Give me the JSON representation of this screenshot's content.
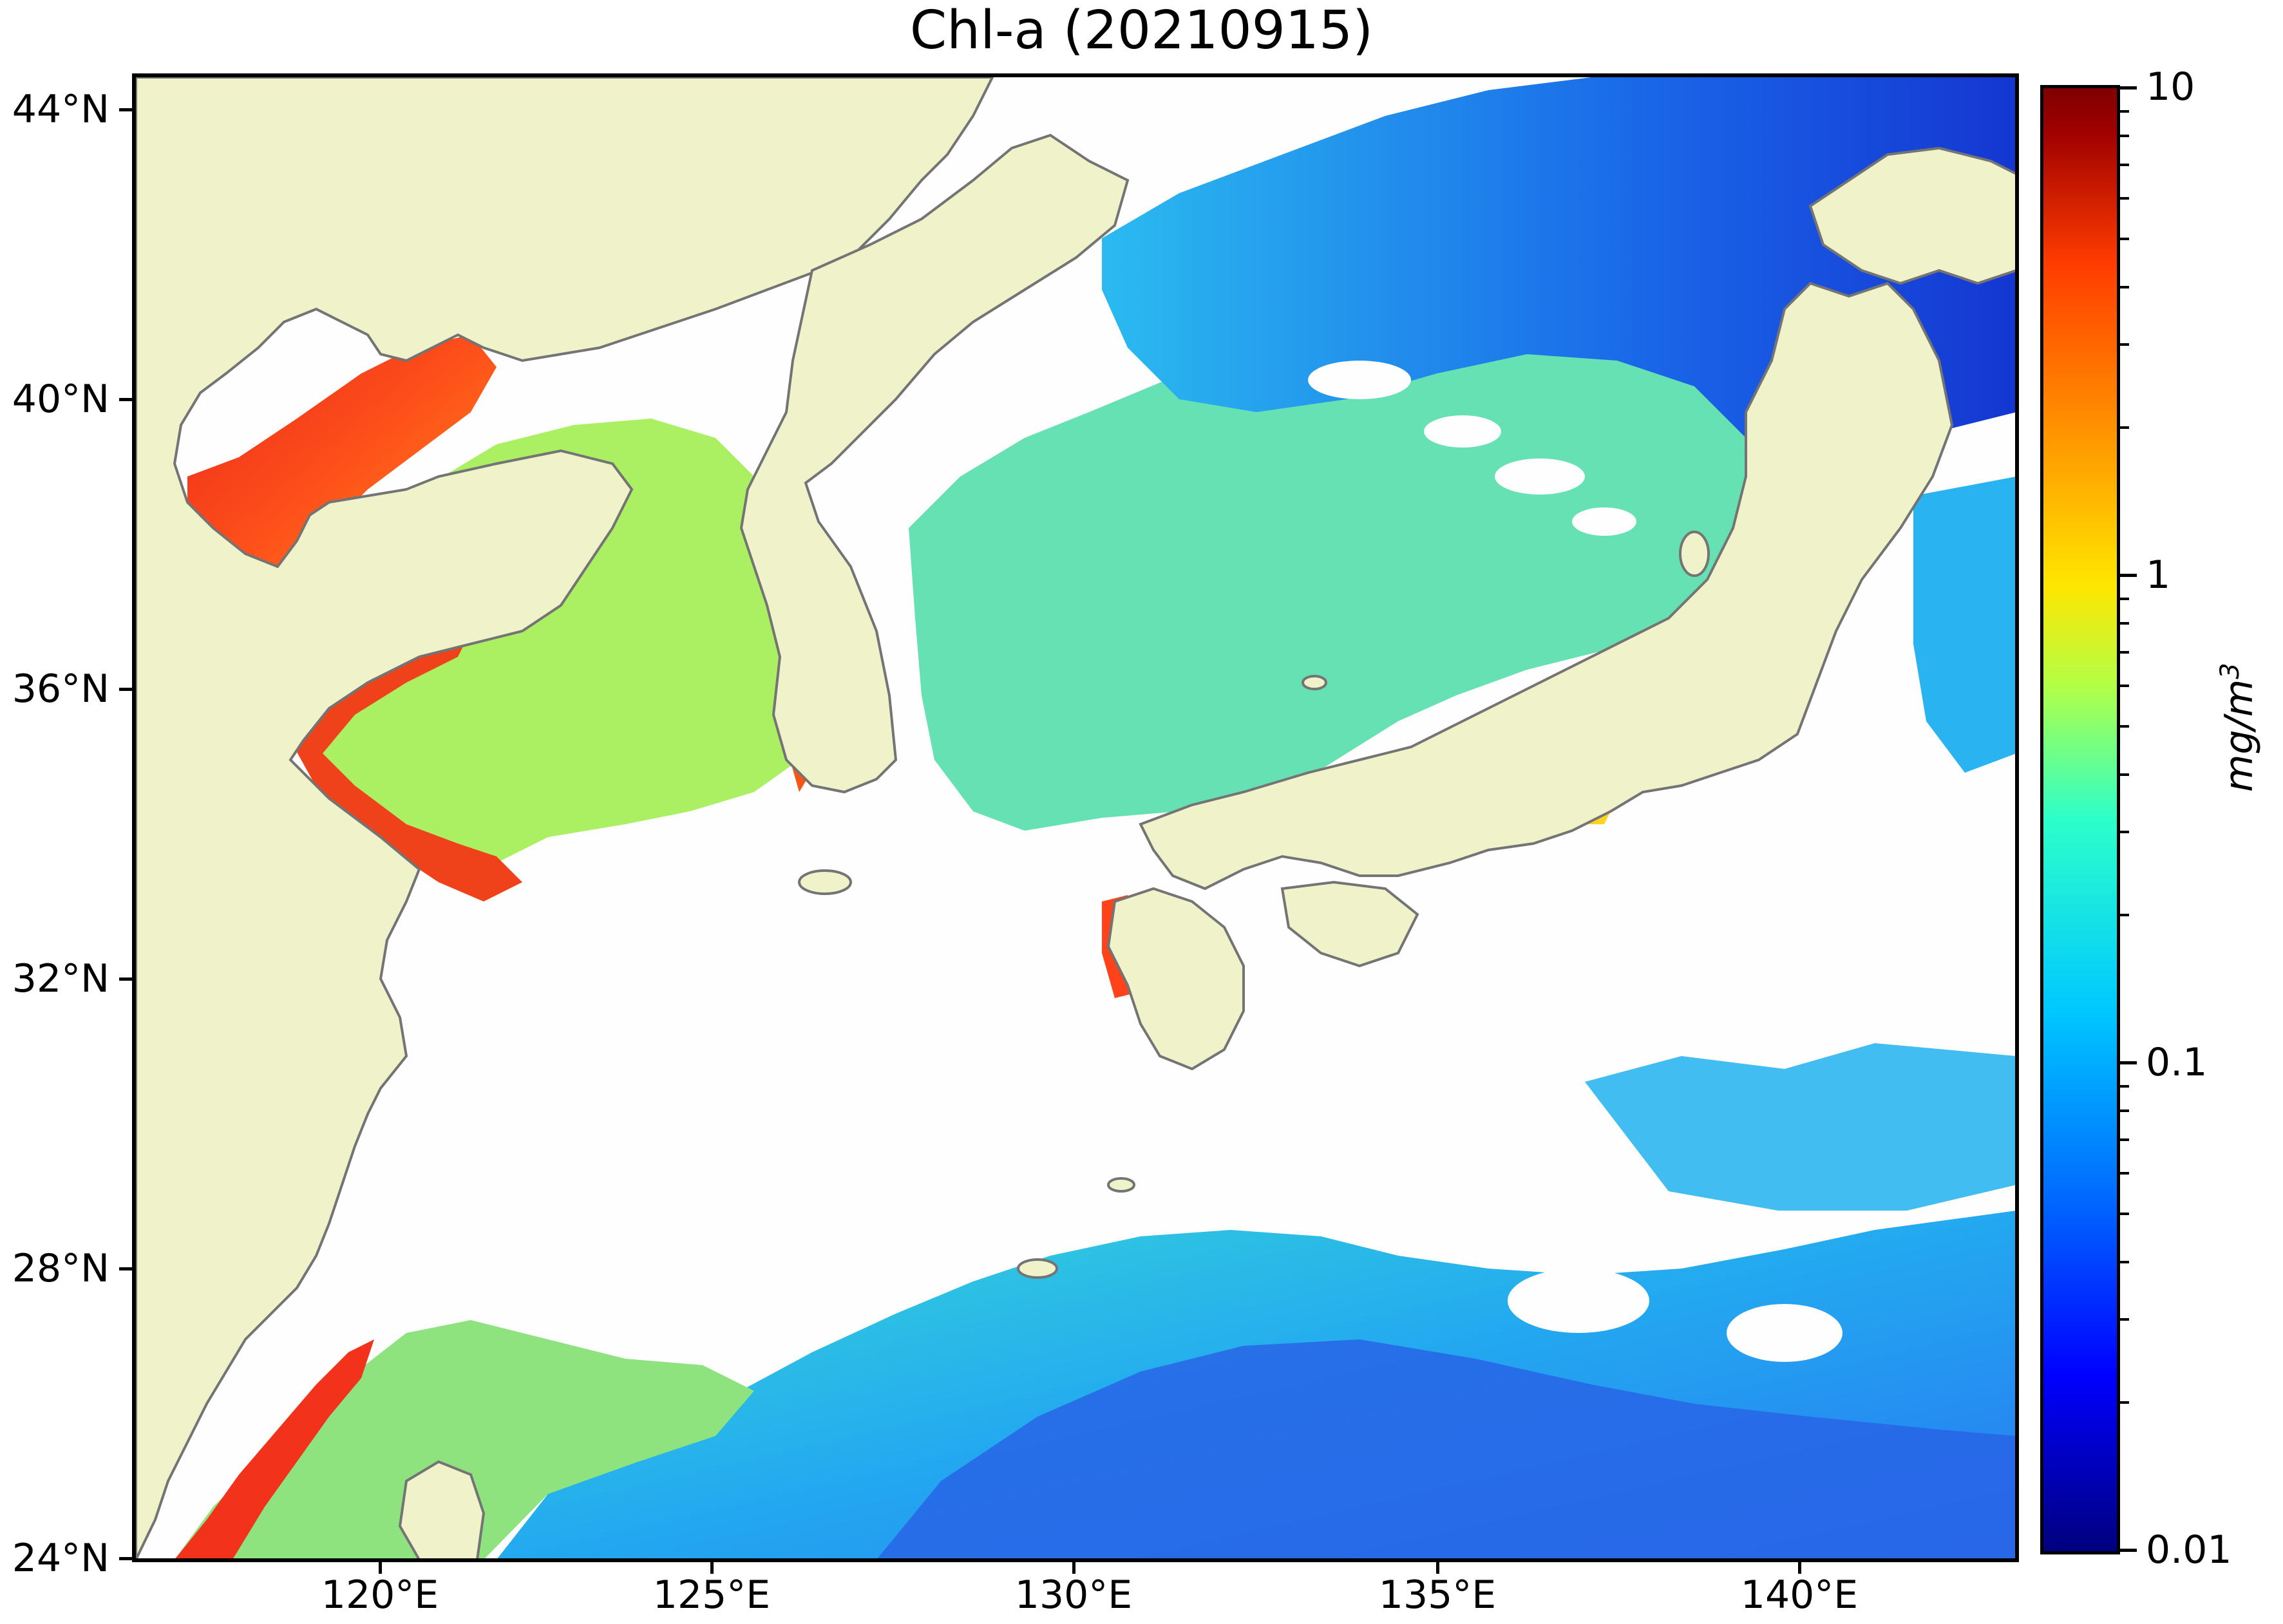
{
  "title": "Chl-a (20210915)",
  "map": {
    "latitude_labels": [
      "44°N",
      "40°N",
      "36°N",
      "32°N",
      "28°N",
      "24°N"
    ],
    "longitude_labels": [
      "120°E",
      "125°E",
      "130°E",
      "135°E",
      "140°E"
    ],
    "colors": {
      "land": "#f0f3c8",
      "cloud_no_data": "#ffffff",
      "coastline": "#6e6e6e"
    }
  },
  "colorbar": {
    "tick_labels": [
      "10",
      "1",
      "0.1",
      "0.01"
    ],
    "unit_label": "mg/m",
    "unit_superscript": "3",
    "scale": "log",
    "range": [
      0.01,
      10
    ],
    "colormap": "jet"
  }
}
